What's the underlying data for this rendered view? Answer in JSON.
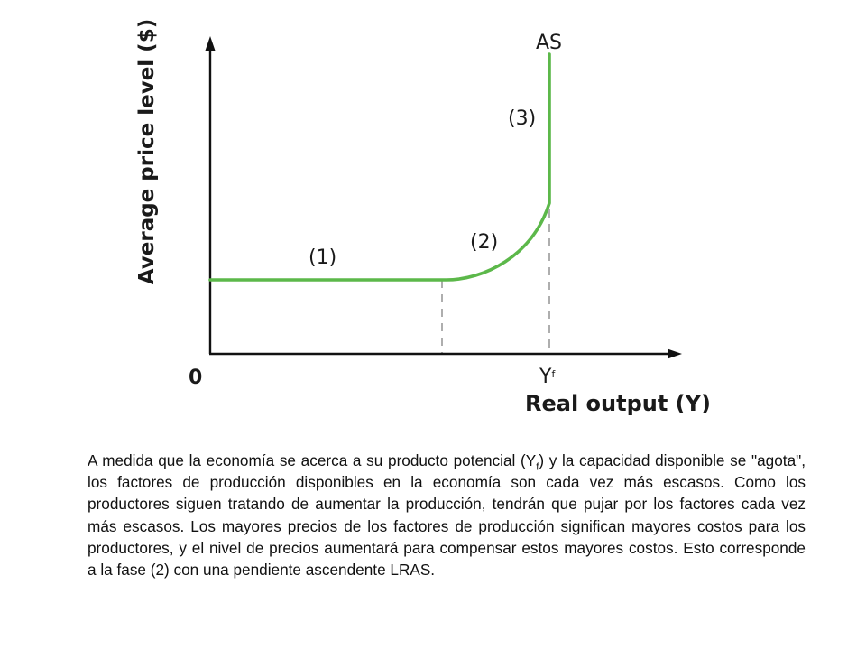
{
  "diagram": {
    "y_axis_label": "Average price level ($)",
    "x_axis_label": "Real output (Y)",
    "origin_label": "0",
    "curve_label": "AS",
    "yf_label": "Y",
    "yf_sub": "f",
    "phase_labels": [
      "(1)",
      "(2)",
      "(3)"
    ],
    "curve_color": "#5cb84a"
  },
  "caption": {
    "part1": "A medida que la economía se acerca a su producto potencial (Y",
    "sub": "f",
    "part2": ") y la capacidad disponible se \"agota\", los factores de producción disponibles en la economía son cada vez más escasos. Como los productores siguen tratando de aumentar la producción, tendrán que pujar por los factores cada vez más escasos. Los mayores precios de los factores de producción significan mayores costos para los productores, y el nivel de precios aumentará para compensar estos mayores costos. Esto corresponde a la fase (2) con una pendiente ascendente LRAS."
  }
}
